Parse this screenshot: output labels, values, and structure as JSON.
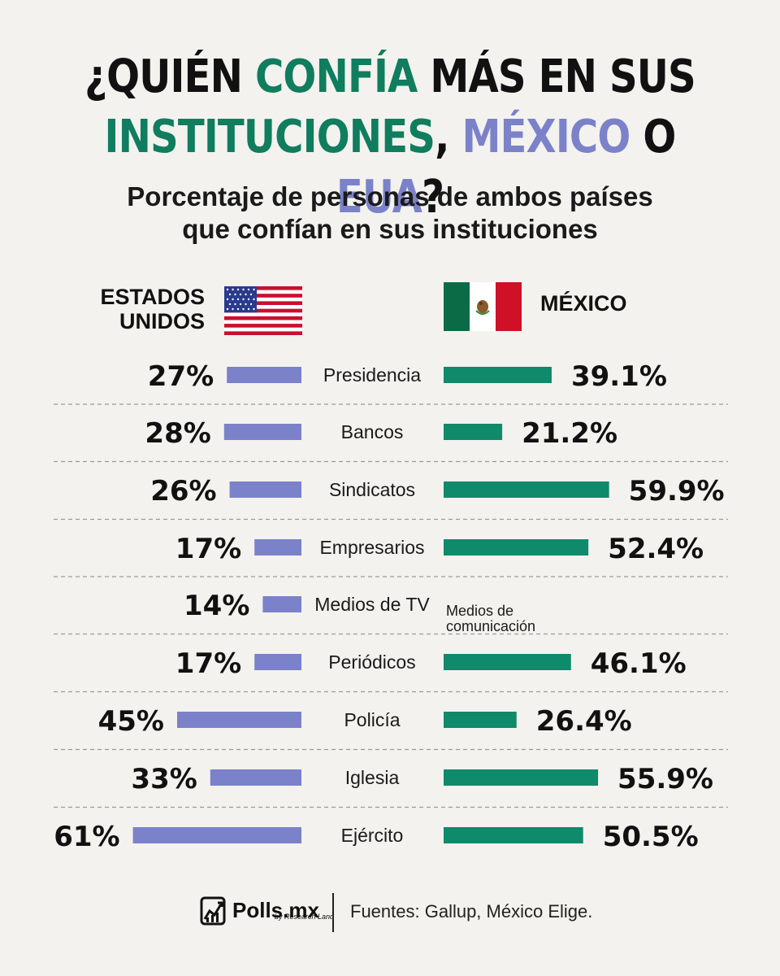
{
  "title": {
    "part1": "¿QUIÉN ",
    "part2": "CONFÍA",
    "part3": " MÁS EN SUS",
    "part4": "INSTITUCIONES",
    "part5": ", ",
    "part6": "MÉXICO",
    "part7": " O ",
    "part8": "EUA",
    "part9": "?"
  },
  "subtitle": {
    "line1": "Porcentaje de personas de ambos países",
    "line2": "que confían en sus instituciones"
  },
  "countries": {
    "left_line1": "ESTADOS",
    "left_line2": "UNIDOS",
    "right": "MÉXICO"
  },
  "colors": {
    "usa_bar": "#7b82c9",
    "mexico_bar": "#0f8a6a",
    "title_green": "#0f7d5e",
    "title_blue": "#7b82c9"
  },
  "chart_data": {
    "type": "bar",
    "orientation": "horizontal-diverging",
    "categories": [
      "Presidencia",
      "Bancos",
      "Sindicatos",
      "Empresarios",
      "Medios de TV",
      "Periódicos",
      "Policía",
      "Iglesia",
      "Ejército"
    ],
    "series": [
      {
        "name": "ESTADOS UNIDOS",
        "values": [
          27,
          28,
          26,
          17,
          14,
          17,
          45,
          33,
          61
        ],
        "labels": [
          "27%",
          "28%",
          "26%",
          "17%",
          "14%",
          "17%",
          "45%",
          "33%",
          "61%"
        ]
      },
      {
        "name": "MÉXICO",
        "values": [
          39.1,
          21.2,
          59.9,
          52.4,
          null,
          46.1,
          26.4,
          55.9,
          50.5
        ],
        "labels": [
          "39.1%",
          "21.2%",
          "59.9%",
          "52.4%",
          "",
          "46.1%",
          "26.4%",
          "55.9%",
          "50.5%"
        ]
      }
    ],
    "mexico_category_note": {
      "line1": "Medios de",
      "line2": "comunicación"
    }
  },
  "footer": {
    "logo": "Polls.mx",
    "logo_sub": "by Research Land",
    "source": "Fuentes: Gallup, México Elige."
  }
}
